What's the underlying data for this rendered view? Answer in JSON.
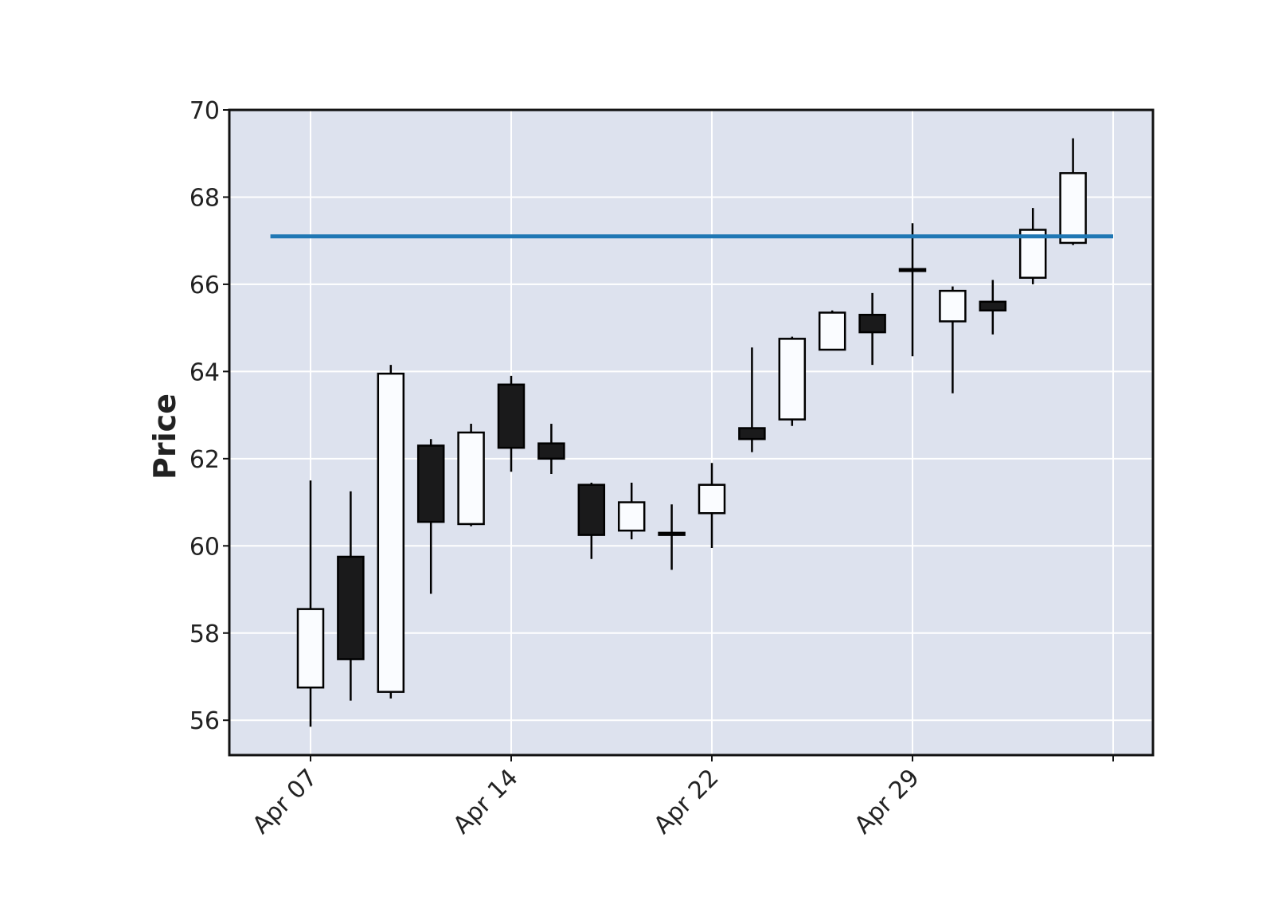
{
  "chart_data": {
    "type": "candlestick",
    "title": "",
    "xlabel": "",
    "ylabel": "Price",
    "ylim": [
      55.2,
      70.0
    ],
    "yticks": [
      56,
      58,
      60,
      62,
      64,
      66,
      68,
      70
    ],
    "grid": true,
    "x_ticks": [
      {
        "label": "Apr 07",
        "index": 0
      },
      {
        "label": "Apr 14",
        "index": 5
      },
      {
        "label": "Apr 22",
        "index": 10
      },
      {
        "label": "Apr 29",
        "index": 15
      },
      {
        "label": "",
        "index": 20
      }
    ],
    "candles": [
      {
        "open": 56.75,
        "high": 61.5,
        "low": 55.85,
        "close": 58.55
      },
      {
        "open": 59.75,
        "high": 61.25,
        "low": 56.45,
        "close": 57.4
      },
      {
        "open": 56.65,
        "high": 64.15,
        "low": 56.5,
        "close": 63.95
      },
      {
        "open": 62.3,
        "high": 62.45,
        "low": 58.9,
        "close": 60.55
      },
      {
        "open": 60.5,
        "high": 62.8,
        "low": 60.45,
        "close": 62.6
      },
      {
        "open": 63.7,
        "high": 63.9,
        "low": 61.7,
        "close": 62.25
      },
      {
        "open": 62.35,
        "high": 62.8,
        "low": 61.65,
        "close": 62.0
      },
      {
        "open": 61.4,
        "high": 61.45,
        "low": 59.7,
        "close": 60.25
      },
      {
        "open": 60.35,
        "high": 61.45,
        "low": 60.15,
        "close": 61.0
      },
      {
        "open": 60.3,
        "high": 60.95,
        "low": 59.45,
        "close": 60.25
      },
      {
        "open": 60.75,
        "high": 61.9,
        "low": 59.95,
        "close": 61.4
      },
      {
        "open": 62.7,
        "high": 64.55,
        "low": 62.15,
        "close": 62.45
      },
      {
        "open": 62.9,
        "high": 64.8,
        "low": 62.75,
        "close": 64.75
      },
      {
        "open": 64.5,
        "high": 65.4,
        "low": 64.5,
        "close": 65.35
      },
      {
        "open": 65.3,
        "high": 65.8,
        "low": 64.15,
        "close": 64.9
      },
      {
        "open": 66.35,
        "high": 67.4,
        "low": 64.35,
        "close": 66.35
      },
      {
        "open": 65.15,
        "high": 65.95,
        "low": 63.5,
        "close": 65.85
      },
      {
        "open": 65.6,
        "high": 66.1,
        "low": 64.85,
        "close": 65.4
      },
      {
        "open": 66.15,
        "high": 67.75,
        "low": 66.0,
        "close": 67.25
      },
      {
        "open": 66.95,
        "high": 69.35,
        "low": 66.9,
        "close": 68.55
      }
    ],
    "hline": {
      "value": 67.1,
      "color": "#1f77b4"
    },
    "colors": {
      "up_body": "#fafcff",
      "down_body": "#1a1a1b",
      "edge": "#000000",
      "plot_background": "#dde2ee",
      "grid": "#ffffff"
    }
  }
}
